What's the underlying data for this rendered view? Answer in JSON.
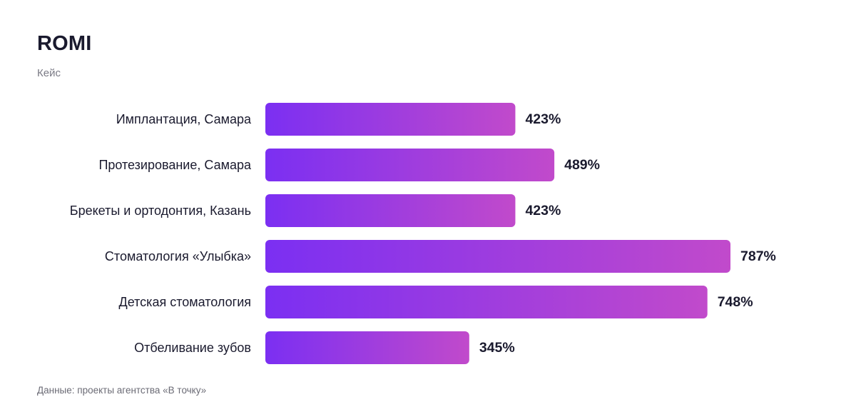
{
  "chart_data": {
    "type": "bar",
    "orientation": "horizontal",
    "title": "ROMI",
    "subtitle": "Кейс",
    "categories": [
      "Имплантация, Самара",
      "Протезирование, Самара",
      "Брекеты и ортодонтия, Казань",
      "Стоматология «Улыбка»",
      "Детская стоматология",
      "Отбеливание зубов"
    ],
    "values": [
      423,
      489,
      423,
      787,
      748,
      345
    ],
    "value_labels": [
      "423%",
      "489%",
      "423%",
      "787%",
      "748%",
      "345%"
    ],
    "unit": "%",
    "xlim": [
      0,
      787
    ],
    "grid": false,
    "colors": {
      "gradient_start": "#7b2ff2",
      "gradient_end": "#c14acb"
    }
  },
  "footer": "Данные: проекты агентства «В точку»"
}
